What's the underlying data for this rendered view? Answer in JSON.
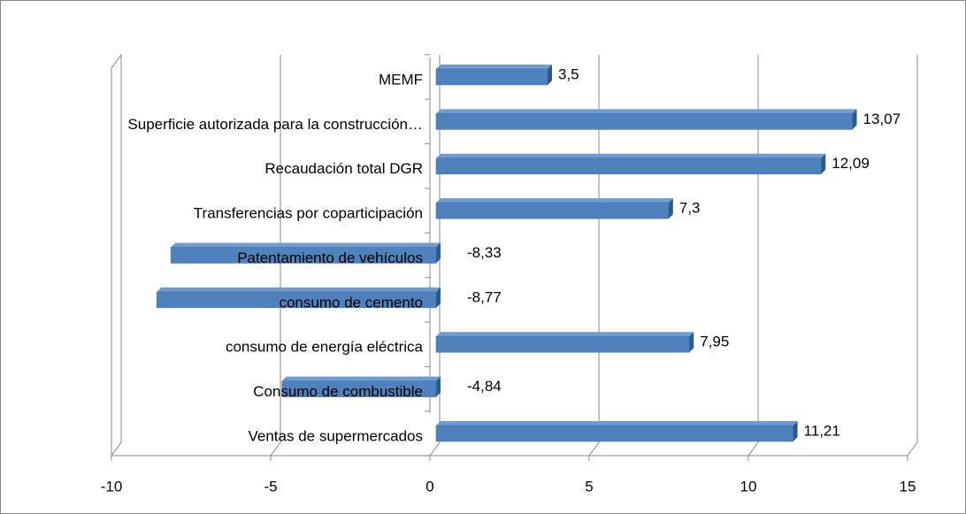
{
  "chart_data": {
    "type": "bar",
    "orientation": "horizontal",
    "categories": [
      "MEMF",
      "Superficie autorizada para la construcción…",
      "Recaudación total DGR",
      "Transferencias por coparticipación",
      "Patentamiento de vehículos",
      "consumo de cemento",
      "consumo de energía eléctrica",
      "Consumo de combustible",
      "Ventas de supermercados"
    ],
    "values": [
      3.5,
      13.07,
      12.09,
      7.3,
      -8.33,
      -8.77,
      7.95,
      -4.84,
      11.21
    ],
    "value_labels": [
      "3,5",
      "13,07",
      "12,09",
      "7,3",
      "-8,33",
      "-8,77",
      "7,95",
      "-4,84",
      "11,21"
    ],
    "color": "#4f81bd",
    "xlim": [
      -10,
      15
    ],
    "xticks": [
      -10,
      -5,
      0,
      5,
      10,
      15
    ],
    "grid": true
  }
}
